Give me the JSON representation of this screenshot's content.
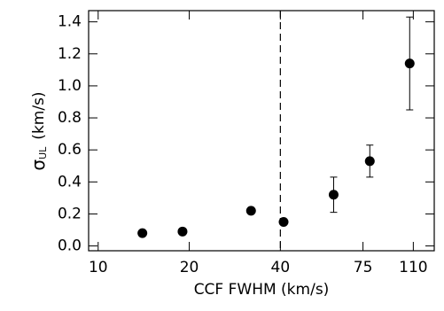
{
  "chart_data": {
    "type": "scatter",
    "x_label": "CCF FWHM (km/s)",
    "y_label": {
      "symbol": "σ",
      "subscript": "UL",
      "unit": "(km/s)"
    },
    "x": [
      14,
      19,
      32,
      41,
      60,
      79,
      107
    ],
    "values": [
      0.08,
      0.09,
      0.22,
      0.15,
      0.32,
      0.53,
      1.14
    ],
    "errors": [
      null,
      null,
      null,
      null,
      0.11,
      0.1,
      0.29
    ],
    "color": "#000000",
    "xscale": "log",
    "xlim": [
      9.3,
      129
    ],
    "xticks": [
      10,
      20,
      40,
      75,
      110
    ],
    "ylim": [
      -0.03,
      1.47
    ],
    "yticks": [
      {
        "value": 0,
        "label": "0.0"
      },
      0.2,
      0.4,
      0.6,
      0.8,
      {
        "value": 1,
        "label": "1.0"
      },
      1.2,
      1.4
    ],
    "vline": 40
  }
}
